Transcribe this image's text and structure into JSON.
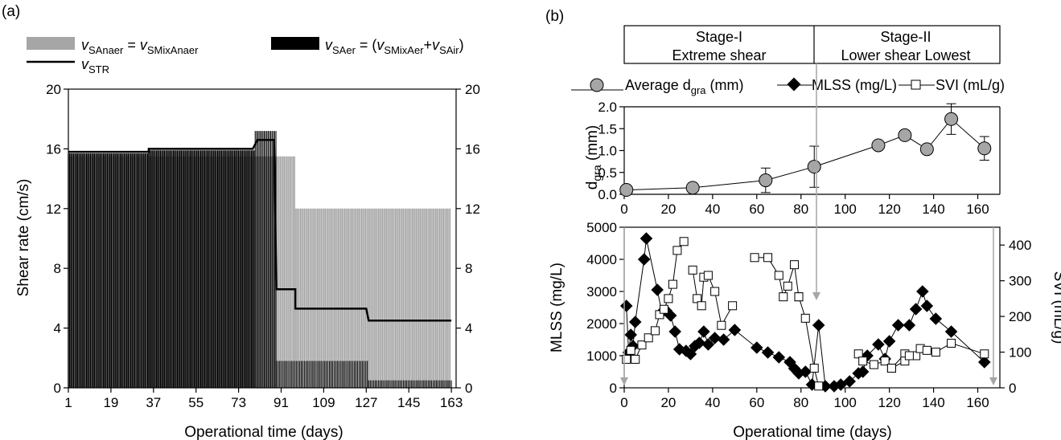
{
  "panel_a": {
    "panel_label": "(a)",
    "legend": {
      "anaer": {
        "sym": "v",
        "sub": "SAnaer",
        "eq": " = ",
        "sym2": "v",
        "sub2": "SMixAnaer"
      },
      "aer": {
        "sym": "v",
        "sub": "SAer",
        "eq": " = (",
        "sym2": "v",
        "sub2": "SMixAer",
        "plus": "+",
        "sym3": "v",
        "sub3": "SAir",
        "close": ")"
      },
      "str": {
        "sym": "v",
        "sub": "STR"
      }
    },
    "colors": {
      "anaer": "#a6a6a6",
      "aer": "#000000",
      "str": "#000000"
    }
  },
  "panel_b": {
    "panel_label": "(b)",
    "stage_I": {
      "line1": "Stage-I",
      "line2": "Extreme shear"
    },
    "stage_II": {
      "line1": "Stage-II",
      "line2": "Lower shear  Lowest"
    },
    "legend": {
      "dgra": "Average d",
      "dgra_sub": "gra",
      "dgra_unit": " (mm)",
      "mlss": "MLSS (mg/L)",
      "svi": "SVI (mL/g)"
    },
    "colors": {
      "dgra_fill": "#a6a6a6",
      "marker_edge": "#000000",
      "arrow": "#a6a6a6"
    }
  },
  "chart_data": [
    {
      "type": "bar",
      "panel": "a",
      "xlabel": "Operational time (days)",
      "ylabel": "Shear rate (cm/s)",
      "xlim": [
        1,
        165
      ],
      "ylim": [
        0,
        20
      ],
      "xticks": [
        1,
        19,
        37,
        55,
        73,
        91,
        109,
        127,
        145,
        163
      ],
      "yticks": [
        0,
        4,
        8,
        12,
        16,
        20
      ],
      "y2ticks": [
        0,
        4,
        8,
        12,
        16,
        20
      ],
      "series": [
        {
          "name": "vSAnaer = vSMixAnaer",
          "kind": "bars",
          "segments": [
            {
              "x0": 1,
              "x1": 82,
              "value": 15.5
            },
            {
              "x0": 82,
              "x1": 89,
              "value": 15.5
            },
            {
              "x0": 89,
              "x1": 97,
              "value": 15.5
            },
            {
              "x0": 97,
              "x1": 163,
              "value": 12.0
            }
          ]
        },
        {
          "name": "vSAer = (vSMixAer+vSAir)",
          "kind": "bars",
          "segments": [
            {
              "x0": 1,
              "x1": 35,
              "value": 15.7
            },
            {
              "x0": 35,
              "x1": 80,
              "value": 15.9
            },
            {
              "x0": 80,
              "x1": 89,
              "value": 17.2
            },
            {
              "x0": 89,
              "x1": 128,
              "value": 1.8
            },
            {
              "x0": 128,
              "x1": 163,
              "value": 0.5
            }
          ]
        },
        {
          "name": "vSTR",
          "kind": "line",
          "x": [
            1,
            35,
            35,
            79,
            81,
            88,
            89,
            97,
            97,
            127,
            128,
            163
          ],
          "y": [
            15.8,
            15.8,
            16.0,
            16.0,
            16.6,
            16.6,
            6.6,
            6.6,
            5.3,
            5.3,
            4.5,
            4.5
          ]
        }
      ]
    },
    {
      "type": "scatter",
      "panel": "b-top",
      "ylabel": "d",
      "ylabel_sub": "gra",
      "ylabel_unit": " (mm)",
      "xlim": [
        0,
        170
      ],
      "ylim": [
        0,
        2.0
      ],
      "xticks": [
        0,
        20,
        40,
        60,
        80,
        100,
        120,
        140,
        160
      ],
      "yticks": [
        "0.0",
        "0.5",
        "1.0",
        "1.5",
        "2.0"
      ],
      "series": [
        {
          "name": "Average dgra (mm)",
          "x": [
            1,
            31,
            64,
            86,
            115,
            127,
            137,
            148,
            163
          ],
          "y": [
            0.1,
            0.15,
            0.32,
            0.63,
            1.12,
            1.35,
            1.03,
            1.72,
            1.05
          ],
          "err": [
            0.02,
            0.03,
            0.28,
            0.47,
            0.1,
            0.07,
            0.1,
            0.35,
            0.27
          ]
        }
      ]
    },
    {
      "type": "line",
      "panel": "b-bottom",
      "xlabel": "Operational time (days)",
      "ylabel": "MLSS (mg/L)",
      "y2label": "SVI (mL/g)",
      "xlim": [
        0,
        170
      ],
      "ylim": [
        0,
        5000
      ],
      "y2lim": [
        0,
        450
      ],
      "xticks": [
        0,
        20,
        40,
        60,
        80,
        100,
        120,
        140,
        160
      ],
      "yticks": [
        0,
        1000,
        2000,
        3000,
        4000,
        5000
      ],
      "y2ticks": [
        0,
        100,
        200,
        300,
        400
      ],
      "series": [
        {
          "name": "MLSS (mg/L)",
          "axis": "left",
          "segments": [
            {
              "x": [
                1,
                2,
                3,
                4,
                5,
                9,
                10,
                15,
                17,
                19,
                21,
                23,
                25,
                28,
                30,
                32,
                34,
                36,
                38,
                41,
                45,
                50,
                60,
                65,
                70,
                75,
                77,
                79,
                82,
                85,
                88,
                91,
                95,
                98,
                102,
                106,
                108,
                110,
                115,
                118,
                120,
                124,
                129,
                132,
                135,
                137,
                141,
                148,
                163
              ],
              "y": [
                2550,
                1100,
                1650,
                1300,
                2050,
                4000,
                4650,
                3050,
                2350,
                2400,
                2250,
                1750,
                1200,
                1150,
                1050,
                1300,
                1400,
                1750,
                1350,
                1550,
                1500,
                1800,
                1250,
                1100,
                950,
                800,
                600,
                450,
                500,
                100,
                1950,
                50,
                50,
                100,
                200,
                450,
                500,
                1000,
                1350,
                900,
                1450,
                1950,
                1950,
                2450,
                3000,
                2550,
                2150,
                1750,
                800
              ]
            }
          ]
        },
        {
          "name": "SVI (mL/g)",
          "axis": "right",
          "segments": [
            {
              "x": [
                1,
                3,
                5,
                8,
                11,
                14,
                16,
                18,
                20,
                22,
                24,
                27
              ],
              "y": [
                80,
                105,
                80,
                120,
                140,
                160,
                205,
                220,
                250,
                290,
                385,
                410
              ]
            },
            {
              "x": [
                31,
                33,
                35,
                36,
                38,
                41,
                44,
                49
              ],
              "y": [
                330,
                250,
                230,
                310,
                315,
                270,
                175,
                230
              ]
            },
            {
              "x": [
                59,
                65,
                70,
                72,
                74,
                77,
                79
              ],
              "y": [
                365,
                365,
                315,
                255,
                285,
                345,
                255
              ]
            },
            {
              "x": [
                79,
                82,
                86,
                88
              ],
              "y": [
                255,
                195,
                55,
                5
              ]
            },
            {
              "x": [
                106,
                108,
                113,
                118,
                121,
                127,
                132
              ],
              "y": [
                95,
                75,
                65,
                75,
                55,
                95,
                90
              ]
            },
            {
              "x": [
                121,
                127,
                129
              ],
              "y": [
                55,
                75,
                90
              ]
            },
            {
              "x": [
                134,
                137,
                141,
                148,
                163
              ],
              "y": [
                110,
                105,
                100,
                125,
                95
              ]
            }
          ]
        }
      ]
    }
  ]
}
